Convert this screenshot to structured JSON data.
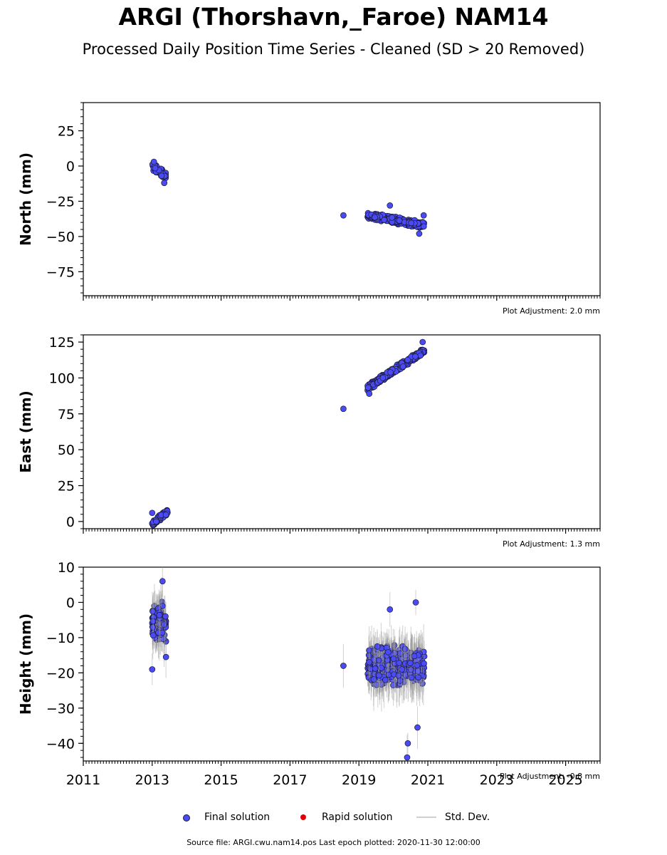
{
  "page": {
    "title": "ARGI (Thorshavn,_Faroe) NAM14",
    "subtitle": "Processed Daily Position Time Series - Cleaned (SD > 20 Removed)",
    "source": "Source file: ARGI.cwu.nam14.pos  Last epoch plotted: 2020-11-30 12:00:00"
  },
  "legend": {
    "final_label": "Final solution",
    "rapid_label": "Rapid solution",
    "sd_label": "Std. Dev.",
    "final_color": "#4b4bf5",
    "rapid_color": "#e0000a",
    "sd_color": "#cfcfcf"
  },
  "colors": {
    "point_fill": "#4b4bf5",
    "point_edge": "#1a1a3a",
    "errorbar": "#9a9a9a"
  },
  "chart_data": [
    {
      "type": "scatter",
      "panel": "north",
      "ylabel": "North (mm)",
      "xlim": [
        2011,
        2026
      ],
      "ylim": [
        -92,
        45
      ],
      "yticks": [
        25,
        0,
        -25,
        -50,
        -75
      ],
      "xticks": [
        2011,
        2013,
        2015,
        2017,
        2019,
        2021,
        2023,
        2025
      ],
      "show_xticklabels": false,
      "adjustment_label": "Plot Adjustment: 2.0 mm",
      "clusters": [
        {
          "x_start": 2013.0,
          "x_end": 2013.4,
          "y_start": 0,
          "y_end": -7,
          "spread": 3.5
        },
        {
          "x_start": 2019.25,
          "x_end": 2020.9,
          "y_start": -35,
          "y_end": -42,
          "spread": 3
        }
      ],
      "points": [
        {
          "x": 2013.05,
          "y": 3
        },
        {
          "x": 2013.35,
          "y": -12
        },
        {
          "x": 2018.55,
          "y": -35
        },
        {
          "x": 2020.75,
          "y": -48
        },
        {
          "x": 2020.88,
          "y": -35
        },
        {
          "x": 2019.9,
          "y": -28
        }
      ]
    },
    {
      "type": "scatter",
      "panel": "east",
      "ylabel": "East (mm)",
      "xlim": [
        2011,
        2026
      ],
      "ylim": [
        -5,
        130
      ],
      "yticks": [
        125,
        100,
        75,
        50,
        25,
        0
      ],
      "xticks": [
        2011,
        2013,
        2015,
        2017,
        2019,
        2021,
        2023,
        2025
      ],
      "show_xticklabels": false,
      "adjustment_label": "Plot Adjustment: 1.3 mm",
      "clusters": [
        {
          "x_start": 2013.0,
          "x_end": 2013.45,
          "y_start": -2,
          "y_end": 7,
          "spread": 2.5
        },
        {
          "x_start": 2019.25,
          "x_end": 2020.9,
          "y_start": 93,
          "y_end": 119,
          "spread": 3
        }
      ],
      "points": [
        {
          "x": 2013.0,
          "y": 6
        },
        {
          "x": 2018.55,
          "y": 78.5
        },
        {
          "x": 2020.85,
          "y": 125
        },
        {
          "x": 2019.3,
          "y": 89
        }
      ]
    },
    {
      "type": "scatter",
      "panel": "height",
      "ylabel": "Height (mm)",
      "xlim": [
        2011,
        2026
      ],
      "ylim": [
        -45,
        10
      ],
      "yticks": [
        10,
        0,
        -10,
        -20,
        -30,
        -40
      ],
      "xticks": [
        2011,
        2013,
        2015,
        2017,
        2019,
        2021,
        2023,
        2025
      ],
      "show_xticklabels": true,
      "adjustment_label": "Plot Adjustment: -0.8 mm",
      "error_bars": true,
      "clusters": [
        {
          "x_start": 2013.0,
          "x_end": 2013.4,
          "y_start": -6,
          "y_end": -6,
          "spread": 7
        },
        {
          "x_start": 2019.25,
          "x_end": 2020.9,
          "y_start": -18,
          "y_end": -18,
          "spread": 7
        }
      ],
      "points": [
        {
          "x": 2013.3,
          "y": 6
        },
        {
          "x": 2013.0,
          "y": -19
        },
        {
          "x": 2013.4,
          "y": -15.5
        },
        {
          "x": 2018.55,
          "y": -18
        },
        {
          "x": 2020.4,
          "y": -44
        },
        {
          "x": 2020.42,
          "y": -40
        },
        {
          "x": 2020.7,
          "y": -35.5
        },
        {
          "x": 2020.65,
          "y": 0
        },
        {
          "x": 2019.9,
          "y": -2
        }
      ]
    }
  ]
}
